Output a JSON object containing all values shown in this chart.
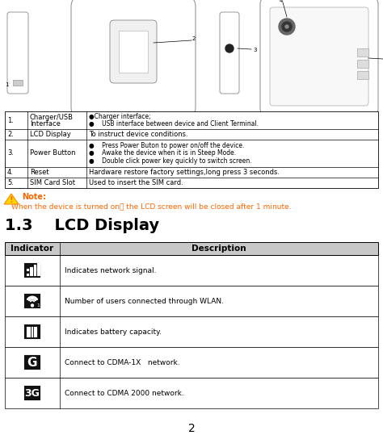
{
  "bg_color": "#ffffff",
  "page_number": "2",
  "table1": {
    "rows": [
      {
        "num": "1.",
        "name": "Charger/USB\nInterface",
        "desc": "●Charger interface;\n●    USB interface between device and Client Terminal."
      },
      {
        "num": "2.",
        "name": "LCD Display",
        "desc": "To instruct device conditions."
      },
      {
        "num": "3.",
        "name": "Power Button",
        "desc": "●    Press Power Buton to power on/off the device.\n●    Awake the device when it is in Steep Mode.\n●    Double click power key quickly to switch screen."
      },
      {
        "num": "4.",
        "name": "Reset",
        "desc": "Hardware restore factory settings,long press 3 seconds."
      },
      {
        "num": "5.",
        "name": "SIM Card Slot",
        "desc": "Used to insert the SIM card."
      }
    ]
  },
  "note_text_line1": "Note:",
  "note_text_line2": "When the device is turned on， the LCD screen will be closed after 1 minute.",
  "section_title": "1.3    LCD Display",
  "table2_header": [
    "Indicator",
    "Description"
  ],
  "table2_rows": [
    {
      "desc": "Indicates network signal."
    },
    {
      "desc": "Number of users connected through WLAN."
    },
    {
      "desc": "Indicates battery capacity."
    },
    {
      "desc": "Connect to CDMA-1X   network."
    },
    {
      "desc": "Connect to CDMA 2000 network."
    }
  ],
  "note_color": "#ff6600",
  "icon_bg": "#111111"
}
